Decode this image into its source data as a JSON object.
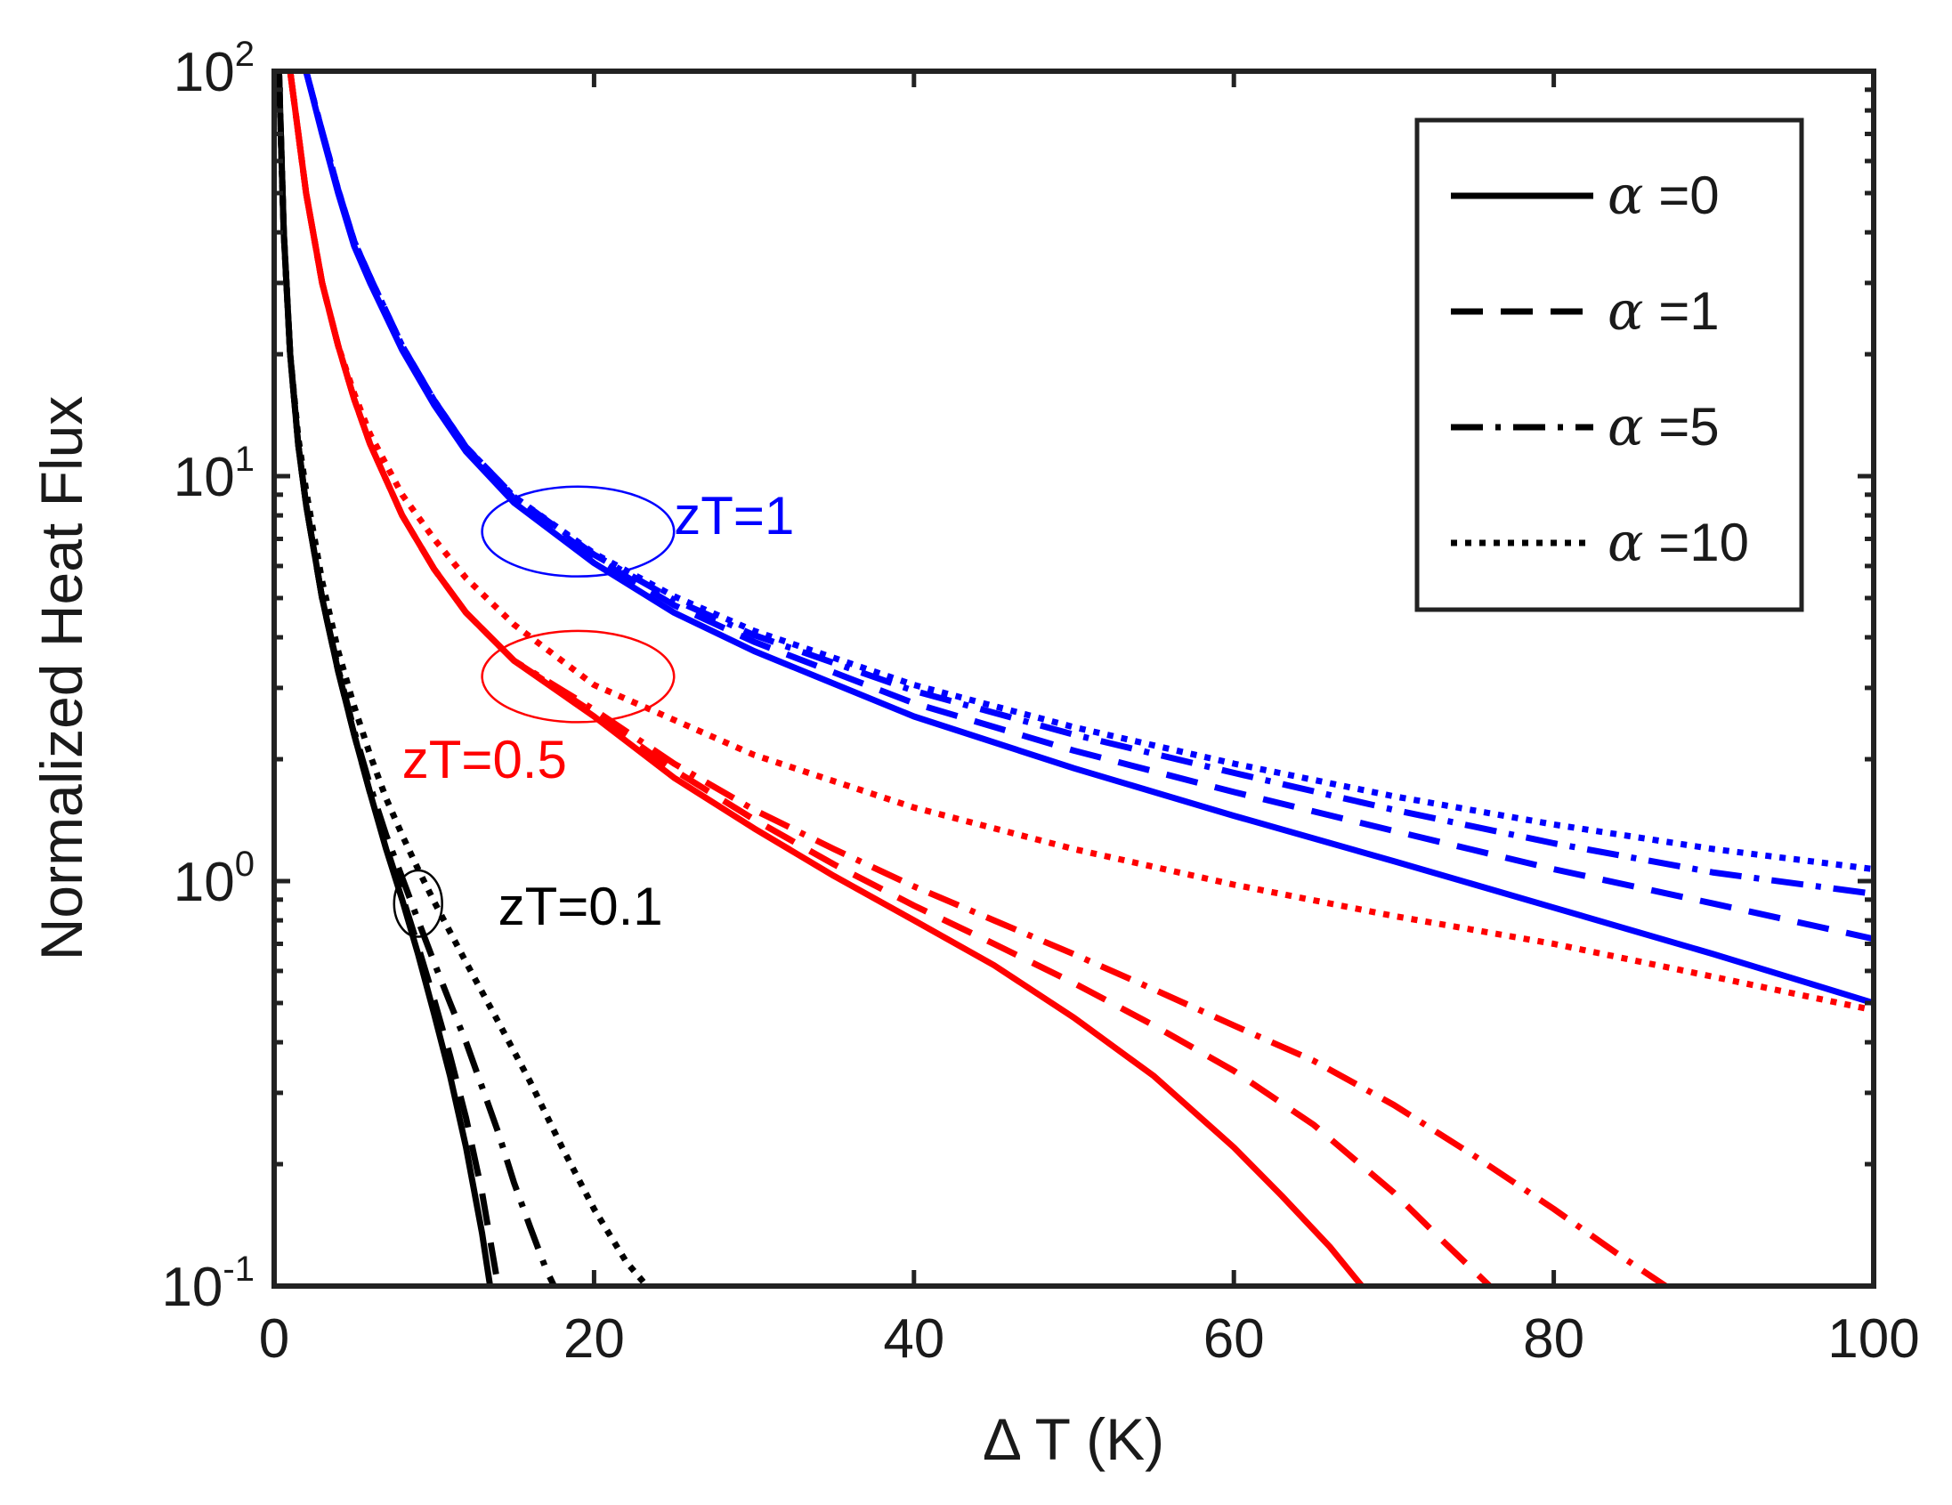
{
  "chart_data": {
    "type": "line",
    "xlabel": "Δ T (K)",
    "ylabel": "Normalized Heat Flux",
    "xlim": [
      0,
      100
    ],
    "ylim": [
      0.1,
      100
    ],
    "yscale": "log",
    "xticks": [
      0,
      20,
      40,
      60,
      80,
      100
    ],
    "xtick_labels": [
      "0",
      "20",
      "40",
      "60",
      "80",
      "100"
    ],
    "yticks": [
      0.1,
      1,
      10,
      100
    ],
    "ytick_labels": [
      {
        "base": "10",
        "exp": "-1"
      },
      {
        "base": "10",
        "exp": "0"
      },
      {
        "base": "10",
        "exp": "1"
      },
      {
        "base": "10",
        "exp": "2"
      }
    ],
    "grid": false,
    "legend": {
      "position": "top-right",
      "entries": [
        {
          "symbol": "α",
          "text": " =0",
          "style": "solid"
        },
        {
          "symbol": "α",
          "text": " =1",
          "style": "dashed"
        },
        {
          "symbol": "α",
          "text": " =5",
          "style": "dashdot"
        },
        {
          "symbol": "α",
          "text": " =10",
          "style": "dotted"
        }
      ]
    },
    "colors": {
      "zT=1": "#0000ff",
      "zT=0.5": "#ff0000",
      "zT=0.1": "#000000"
    },
    "annotations": [
      {
        "text": "zT=1",
        "x": 25,
        "y": 7.2,
        "color": "#0000ff"
      },
      {
        "text": "zT=0.5",
        "x": 8,
        "y": 1.8,
        "color": "#ff0000"
      },
      {
        "text": "zT=0.1",
        "x": 14,
        "y": 0.78,
        "color": "#000000"
      }
    ],
    "ellipses": [
      {
        "cx": 19,
        "cy": 7.3,
        "rx": 6,
        "ry_top": 9.5,
        "ry_bottom": 5.7,
        "color": "#0000ff"
      },
      {
        "cx": 19,
        "cy": 3.2,
        "rx": 6,
        "ry_top": 4.2,
        "ry_bottom": 2.5,
        "color": "#ff0000"
      },
      {
        "cx": 9,
        "cy": 0.88,
        "rx": 1.5,
        "ry_top": 1.05,
        "ry_bottom": 0.72,
        "color": "#000000"
      }
    ],
    "series": [
      {
        "zT": "1",
        "alpha": "0",
        "style": "solid",
        "color": "#0000ff",
        "x": [
          2,
          3,
          4,
          5,
          6,
          8,
          10,
          12,
          15,
          20,
          25,
          30,
          40,
          50,
          60,
          70,
          80,
          90,
          100
        ],
        "y": [
          100,
          70,
          50,
          37,
          30,
          20.5,
          15,
          11.5,
          8.6,
          6.1,
          4.6,
          3.7,
          2.55,
          1.9,
          1.45,
          1.12,
          0.86,
          0.66,
          0.5
        ]
      },
      {
        "zT": "1",
        "alpha": "1",
        "style": "dashed",
        "color": "#0000ff",
        "x": [
          2,
          3,
          4,
          5,
          6,
          8,
          10,
          12,
          15,
          20,
          25,
          30,
          40,
          50,
          60,
          70,
          80,
          90,
          100
        ],
        "y": [
          100,
          71,
          51,
          38,
          31,
          21,
          15.4,
          11.8,
          8.8,
          6.3,
          4.8,
          3.9,
          2.75,
          2.1,
          1.66,
          1.33,
          1.07,
          0.88,
          0.72
        ]
      },
      {
        "zT": "1",
        "alpha": "5",
        "style": "dashdot",
        "color": "#0000ff",
        "x": [
          2,
          3,
          4,
          5,
          6,
          8,
          10,
          12,
          15,
          20,
          25,
          30,
          40,
          50,
          60,
          70,
          80,
          90,
          100
        ],
        "y": [
          100,
          71,
          51,
          38,
          31,
          21,
          15.4,
          11.8,
          8.9,
          6.4,
          4.95,
          4.05,
          2.95,
          2.3,
          1.85,
          1.5,
          1.24,
          1.05,
          0.93
        ]
      },
      {
        "zT": "1",
        "alpha": "10",
        "style": "dotted",
        "color": "#0000ff",
        "x": [
          2,
          3,
          4,
          5,
          6,
          8,
          10,
          12,
          15,
          20,
          25,
          30,
          40,
          50,
          60,
          70,
          80,
          90,
          100
        ],
        "y": [
          100,
          71,
          51,
          38,
          31,
          21,
          15.4,
          11.8,
          8.9,
          6.45,
          5.05,
          4.15,
          3.05,
          2.4,
          1.95,
          1.62,
          1.38,
          1.2,
          1.07
        ]
      },
      {
        "zT": "0.5",
        "alpha": "0",
        "style": "solid",
        "color": "#ff0000",
        "x": [
          1,
          2,
          3,
          4,
          5,
          6,
          8,
          10,
          12,
          15,
          20,
          25,
          30,
          35,
          40,
          45,
          50,
          55,
          60,
          63,
          66,
          68
        ],
        "y": [
          100,
          50,
          30,
          21,
          15.5,
          12,
          8,
          5.9,
          4.6,
          3.5,
          2.55,
          1.8,
          1.35,
          1.03,
          0.8,
          0.62,
          0.46,
          0.33,
          0.22,
          0.167,
          0.125,
          0.1
        ]
      },
      {
        "zT": "0.5",
        "alpha": "1",
        "style": "dashed",
        "color": "#ff0000",
        "x": [
          1,
          2,
          3,
          4,
          5,
          6,
          8,
          10,
          12,
          15,
          20,
          25,
          30,
          35,
          40,
          45,
          50,
          55,
          60,
          65,
          70,
          73,
          76
        ],
        "y": [
          100,
          50,
          30,
          21,
          15.5,
          12,
          8,
          5.9,
          4.6,
          3.5,
          2.6,
          1.88,
          1.42,
          1.1,
          0.87,
          0.7,
          0.56,
          0.44,
          0.34,
          0.25,
          0.17,
          0.13,
          0.1
        ]
      },
      {
        "zT": "0.5",
        "alpha": "5",
        "style": "dashdot",
        "color": "#ff0000",
        "x": [
          1,
          2,
          3,
          4,
          5,
          6,
          8,
          10,
          12,
          15,
          20,
          25,
          30,
          35,
          40,
          45,
          50,
          55,
          60,
          65,
          70,
          75,
          80,
          84,
          87
        ],
        "y": [
          100,
          50,
          30,
          21,
          15.5,
          12,
          8,
          5.9,
          4.6,
          3.5,
          2.65,
          1.95,
          1.5,
          1.2,
          0.97,
          0.8,
          0.66,
          0.54,
          0.44,
          0.36,
          0.28,
          0.21,
          0.155,
          0.12,
          0.1
        ]
      },
      {
        "zT": "0.5",
        "alpha": "10",
        "style": "dotted",
        "color": "#ff0000",
        "x": [
          1,
          2,
          3,
          4,
          5,
          6,
          8,
          10,
          12,
          15,
          20,
          25,
          30,
          40,
          50,
          60,
          70,
          80,
          90,
          100
        ],
        "y": [
          100,
          50,
          30,
          21,
          16,
          12.7,
          9,
          7,
          5.6,
          4.3,
          3.05,
          2.5,
          2.05,
          1.52,
          1.2,
          0.98,
          0.82,
          0.7,
          0.58,
          0.48
        ]
      },
      {
        "zT": "0.1",
        "alpha": "0",
        "style": "solid",
        "color": "#000000",
        "x": [
          0.3,
          0.6,
          1,
          1.5,
          2,
          3,
          4,
          5,
          6,
          7,
          8,
          9,
          10,
          11,
          12,
          13,
          13.5
        ],
        "y": [
          100,
          40,
          20,
          12,
          8.5,
          5,
          3.3,
          2.3,
          1.65,
          1.2,
          0.9,
          0.66,
          0.47,
          0.33,
          0.22,
          0.135,
          0.1
        ]
      },
      {
        "zT": "0.1",
        "alpha": "1",
        "style": "dashed",
        "color": "#000000",
        "x": [
          0.3,
          0.6,
          1,
          1.5,
          2,
          3,
          4,
          5,
          6,
          7,
          8,
          9,
          10,
          11,
          12,
          13,
          14
        ],
        "y": [
          100,
          40,
          20,
          12,
          8.5,
          5,
          3.3,
          2.3,
          1.65,
          1.22,
          0.92,
          0.69,
          0.51,
          0.37,
          0.26,
          0.17,
          0.1
        ]
      },
      {
        "zT": "0.1",
        "alpha": "5",
        "style": "dashdot",
        "color": "#000000",
        "x": [
          0.3,
          0.6,
          1,
          1.5,
          2,
          3,
          4,
          5,
          6,
          7,
          8,
          9,
          10,
          11,
          12,
          13,
          14,
          15,
          16,
          17,
          17.5
        ],
        "y": [
          100,
          40,
          20,
          12,
          8.5,
          5,
          3.35,
          2.35,
          1.72,
          1.3,
          1.02,
          0.8,
          0.63,
          0.5,
          0.4,
          0.31,
          0.24,
          0.18,
          0.14,
          0.11,
          0.1
        ]
      },
      {
        "zT": "0.1",
        "alpha": "10",
        "style": "dotted",
        "color": "#000000",
        "x": [
          0.3,
          0.6,
          1,
          1.5,
          2,
          3,
          4,
          5,
          6,
          7,
          8,
          9,
          10,
          12,
          14,
          16,
          18,
          20,
          22,
          23.3
        ],
        "y": [
          100,
          40,
          20,
          12.5,
          9.2,
          5.5,
          3.7,
          2.7,
          2.05,
          1.6,
          1.3,
          1.07,
          0.89,
          0.63,
          0.45,
          0.32,
          0.22,
          0.155,
          0.115,
          0.1
        ]
      }
    ]
  }
}
